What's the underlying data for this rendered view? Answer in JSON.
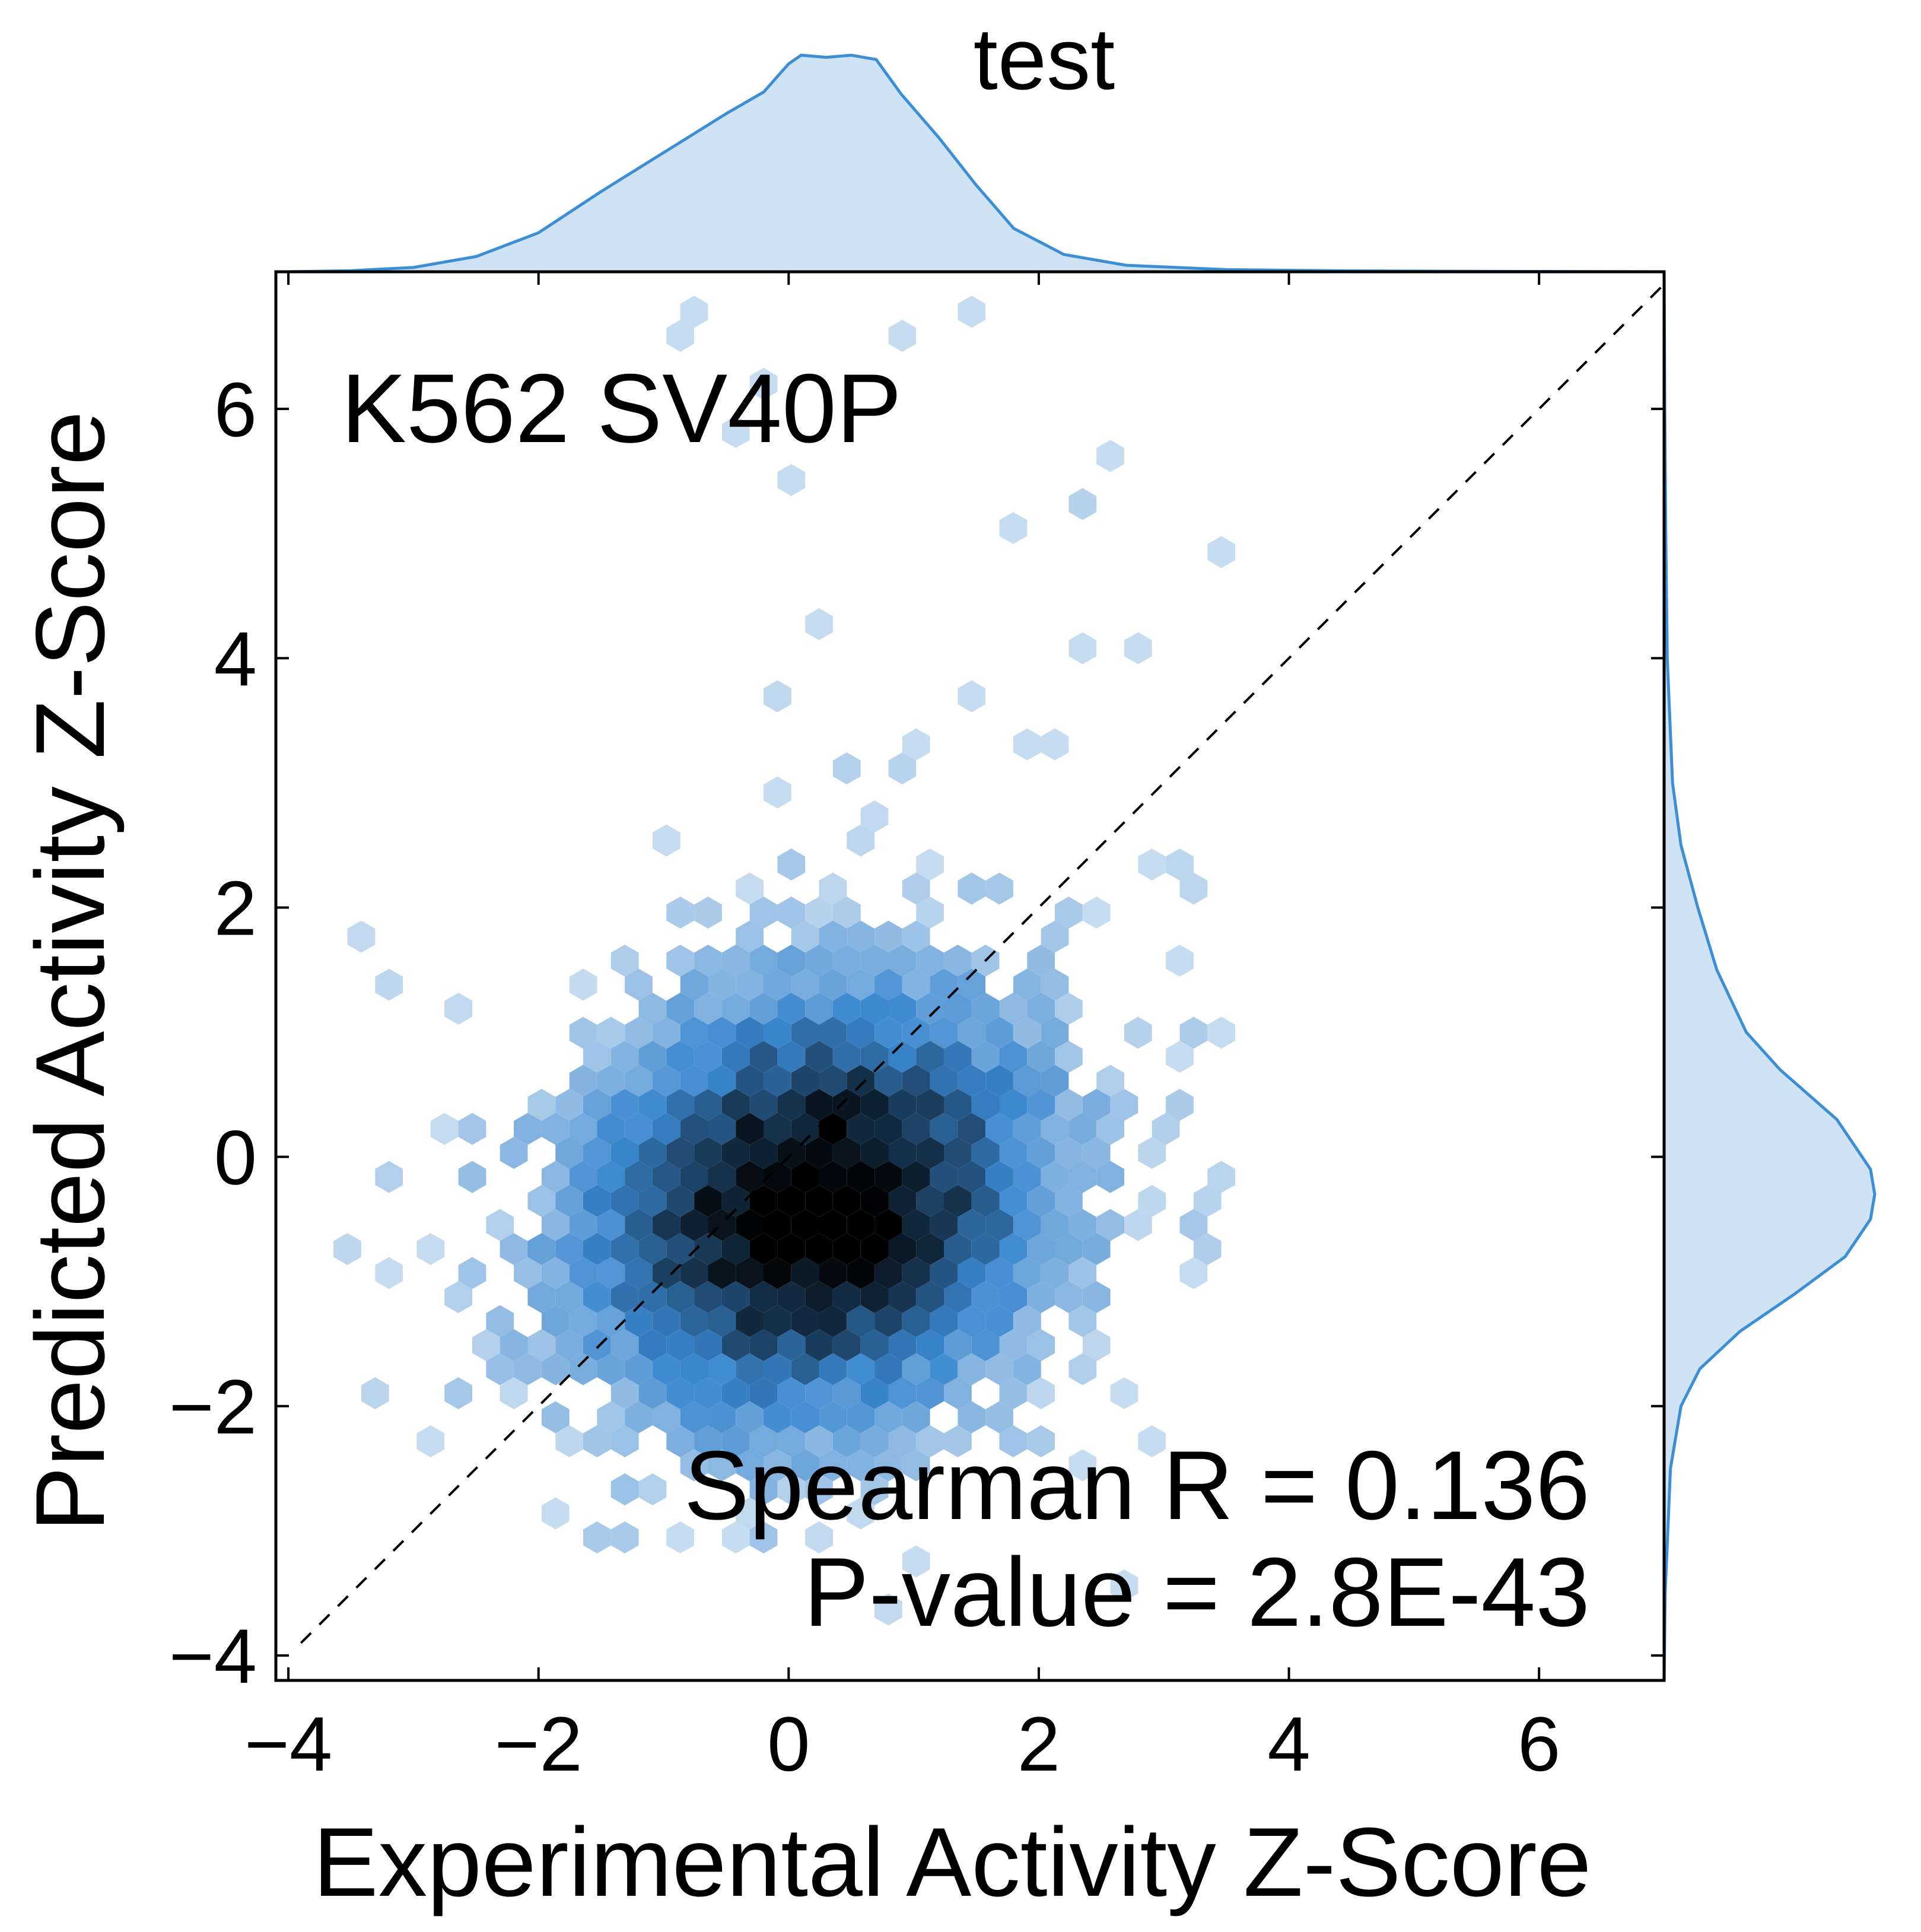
{
  "chart_data": {
    "type": "hexbin",
    "title": "test",
    "xlabel": "Experimental Activity Z-Score",
    "ylabel": "Predicted Activity Z-Score",
    "annotation": "K562 SV40P",
    "stats": {
      "spearman": "Spearman R = 0.136",
      "pvalue": "P-value = 2.8E-43"
    },
    "xlim": [
      -4.1,
      7.0
    ],
    "ylim": [
      -4.2,
      7.1
    ],
    "xticks": [
      -4,
      -2,
      0,
      2,
      4,
      6
    ],
    "yticks": [
      -4,
      -2,
      0,
      2,
      4,
      6
    ],
    "xtick_labels": [
      "−4",
      "−2",
      "0",
      "2",
      "4",
      "6"
    ],
    "ytick_labels": [
      "−4",
      "−2",
      "0",
      "2",
      "4",
      "6"
    ],
    "grid": false,
    "diagonal": {
      "from": [
        -3.9,
        -3.9
      ],
      "to": [
        7.0,
        7.0
      ],
      "style": "dashed"
    },
    "density_center": {
      "x": 0.2,
      "y": -0.4
    },
    "density_spread": {
      "x": 1.2,
      "y": 1.1
    },
    "marginal_x_density": {
      "x": [
        -4.0,
        -3.5,
        -3.0,
        -2.5,
        -2.0,
        -1.5,
        -1.0,
        -0.5,
        -0.2,
        0.0,
        0.1,
        0.3,
        0.5,
        0.7,
        0.9,
        1.2,
        1.5,
        1.8,
        2.2,
        2.7,
        3.5,
        4.5,
        5.5,
        7.0
      ],
      "density": [
        0.0,
        0.005,
        0.02,
        0.07,
        0.18,
        0.37,
        0.55,
        0.73,
        0.83,
        0.96,
        1.0,
        0.99,
        1.0,
        0.98,
        0.82,
        0.62,
        0.4,
        0.2,
        0.08,
        0.03,
        0.01,
        0.004,
        0.002,
        0.0
      ]
    },
    "marginal_y_density": {
      "y": [
        -4.2,
        -3.5,
        -2.5,
        -2.0,
        -1.7,
        -1.4,
        -1.1,
        -0.8,
        -0.5,
        -0.3,
        -0.1,
        0.3,
        0.7,
        1.0,
        1.5,
        2.0,
        2.5,
        3.0,
        4.0,
        5.0,
        6.0,
        7.1
      ],
      "density": [
        0.0,
        0.005,
        0.03,
        0.08,
        0.17,
        0.36,
        0.62,
        0.86,
        0.98,
        1.0,
        0.98,
        0.82,
        0.55,
        0.39,
        0.25,
        0.16,
        0.08,
        0.04,
        0.015,
        0.008,
        0.003,
        0.0
      ]
    },
    "colors": {
      "hex_light": "#cfe1f2",
      "hex_mid": "#3a87cf",
      "hex_dark": "#000000",
      "marginal_fill": "#cfe3f4",
      "marginal_line": "#3d8fd5"
    }
  }
}
